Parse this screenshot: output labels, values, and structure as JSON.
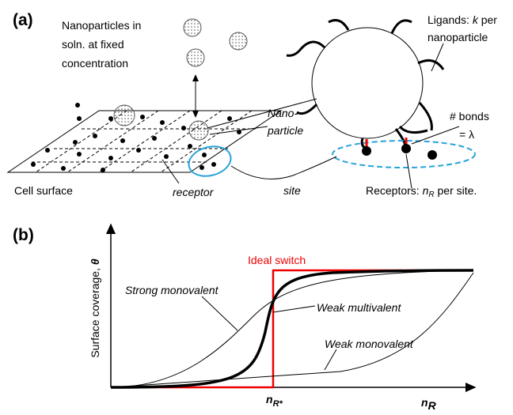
{
  "panel_a": {
    "label": "(a)",
    "solution_text": [
      "Nanoparticles in",
      "soln. at fixed",
      "concentration"
    ],
    "ligands_text": {
      "prefix": "Ligands: ",
      "var": "k",
      "suffix": " per",
      "line2": "nanoparticle"
    },
    "nanoparticle_text": [
      "Nano-",
      "particle"
    ],
    "bonds_text": [
      "# bonds",
      "= λ"
    ],
    "cell_surface": "Cell surface",
    "receptor": "receptor",
    "site": "site",
    "receptors_text": {
      "prefix": "Receptors: ",
      "var": "n",
      "sub": "R",
      "suffix": " per site."
    }
  },
  "panel_b": {
    "label": "(b)",
    "y_axis": "Surface coverage, ",
    "y_symbol": "θ",
    "ideal_switch": "Ideal switch",
    "strong_monovalent": "Strong monovalent",
    "weak_multivalent": "Weak multivalent",
    "weak_monovalent": "Weak monovalent",
    "threshold": {
      "var": "n",
      "sub": "R*"
    },
    "x_axis": {
      "var": "n",
      "sub": "R"
    }
  }
}
